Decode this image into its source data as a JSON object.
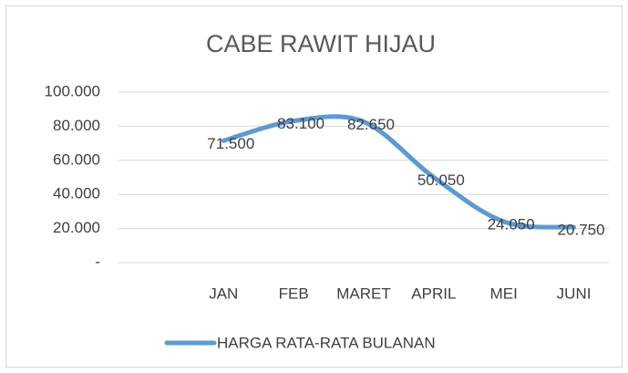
{
  "chart_data": {
    "type": "line",
    "title": "CABE RAWIT HIJAU",
    "categories": [
      null,
      "JAN",
      "FEB",
      "MARET",
      "APRIL",
      "MEI",
      "JUNI"
    ],
    "series": [
      {
        "name": "HARGA RATA-RATA BULANAN",
        "color": "#5b9bd5",
        "values": [
          null,
          71500,
          83100,
          82650,
          50050,
          24050,
          20750
        ],
        "value_labels": [
          null,
          "71.500",
          "83.100",
          "82.650",
          "50.050",
          "24.050",
          "20.750"
        ]
      }
    ],
    "ylim": [
      0,
      100000
    ],
    "yticks": [
      {
        "value": 0,
        "label": "-"
      },
      {
        "value": 20000,
        "label": "20.000"
      },
      {
        "value": 40000,
        "label": "40.000"
      },
      {
        "value": 60000,
        "label": "60.000"
      },
      {
        "value": 80000,
        "label": "80.000"
      },
      {
        "value": 100000,
        "label": "100.000"
      }
    ],
    "grid": true,
    "smooth": true,
    "legend": "bottom"
  }
}
